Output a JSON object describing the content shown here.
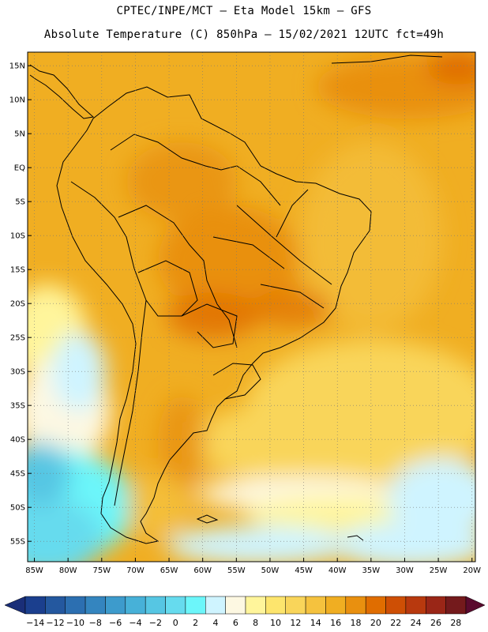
{
  "header": {
    "line1": "CPTEC/INPE/MCT –  Eta Model 15km – GFS",
    "line2": "Absolute Temperature (C) 850hPa – 15/02/2021 12UTC fct=49h"
  },
  "map": {
    "lat_range": [
      -58,
      17
    ],
    "lon_range": [
      -86,
      -19.5
    ],
    "lat_ticks": [
      {
        "value": 15,
        "label": "15N"
      },
      {
        "value": 10,
        "label": "10N"
      },
      {
        "value": 5,
        "label": "5N"
      },
      {
        "value": 0,
        "label": "EQ"
      },
      {
        "value": -5,
        "label": "5S"
      },
      {
        "value": -10,
        "label": "10S"
      },
      {
        "value": -15,
        "label": "15S"
      },
      {
        "value": -20,
        "label": "20S"
      },
      {
        "value": -25,
        "label": "25S"
      },
      {
        "value": -30,
        "label": "30S"
      },
      {
        "value": -35,
        "label": "35S"
      },
      {
        "value": -40,
        "label": "40S"
      },
      {
        "value": -45,
        "label": "45S"
      },
      {
        "value": -50,
        "label": "50S"
      },
      {
        "value": -55,
        "label": "55S"
      }
    ],
    "lon_ticks": [
      {
        "value": -85,
        "label": "85W"
      },
      {
        "value": -80,
        "label": "80W"
      },
      {
        "value": -75,
        "label": "75W"
      },
      {
        "value": -70,
        "label": "70W"
      },
      {
        "value": -65,
        "label": "65W"
      },
      {
        "value": -60,
        "label": "60W"
      },
      {
        "value": -55,
        "label": "55W"
      },
      {
        "value": -50,
        "label": "50W"
      },
      {
        "value": -45,
        "label": "45W"
      },
      {
        "value": -40,
        "label": "40W"
      },
      {
        "value": -35,
        "label": "35W"
      },
      {
        "value": -30,
        "label": "30W"
      },
      {
        "value": -25,
        "label": "25W"
      },
      {
        "value": -20,
        "label": "20W"
      }
    ],
    "grid": "dotted"
  },
  "colorbar": {
    "labels": [
      "-14",
      "-12",
      "-10",
      "-8",
      "-6",
      "-4",
      "-2",
      "0",
      "2",
      "4",
      "6",
      "8",
      "10",
      "12",
      "14",
      "16",
      "18",
      "20",
      "22",
      "24",
      "26",
      "28"
    ],
    "colors": [
      "#1b3f8e",
      "#24589f",
      "#2c6fb1",
      "#3485bf",
      "#3d9bcc",
      "#47b1d8",
      "#56c6e3",
      "#66dbee",
      "#6cf6fa",
      "#cff4ff",
      "#fdf8e2",
      "#fff59b",
      "#fde56d",
      "#f9d55a",
      "#f5c23e",
      "#f0ae22",
      "#e9900f",
      "#e06d00",
      "#ce4f05",
      "#b8390e",
      "#9a2617",
      "#741a1c"
    ],
    "under_color": "#1a2e78",
    "over_color": "#5a0b2e"
  }
}
